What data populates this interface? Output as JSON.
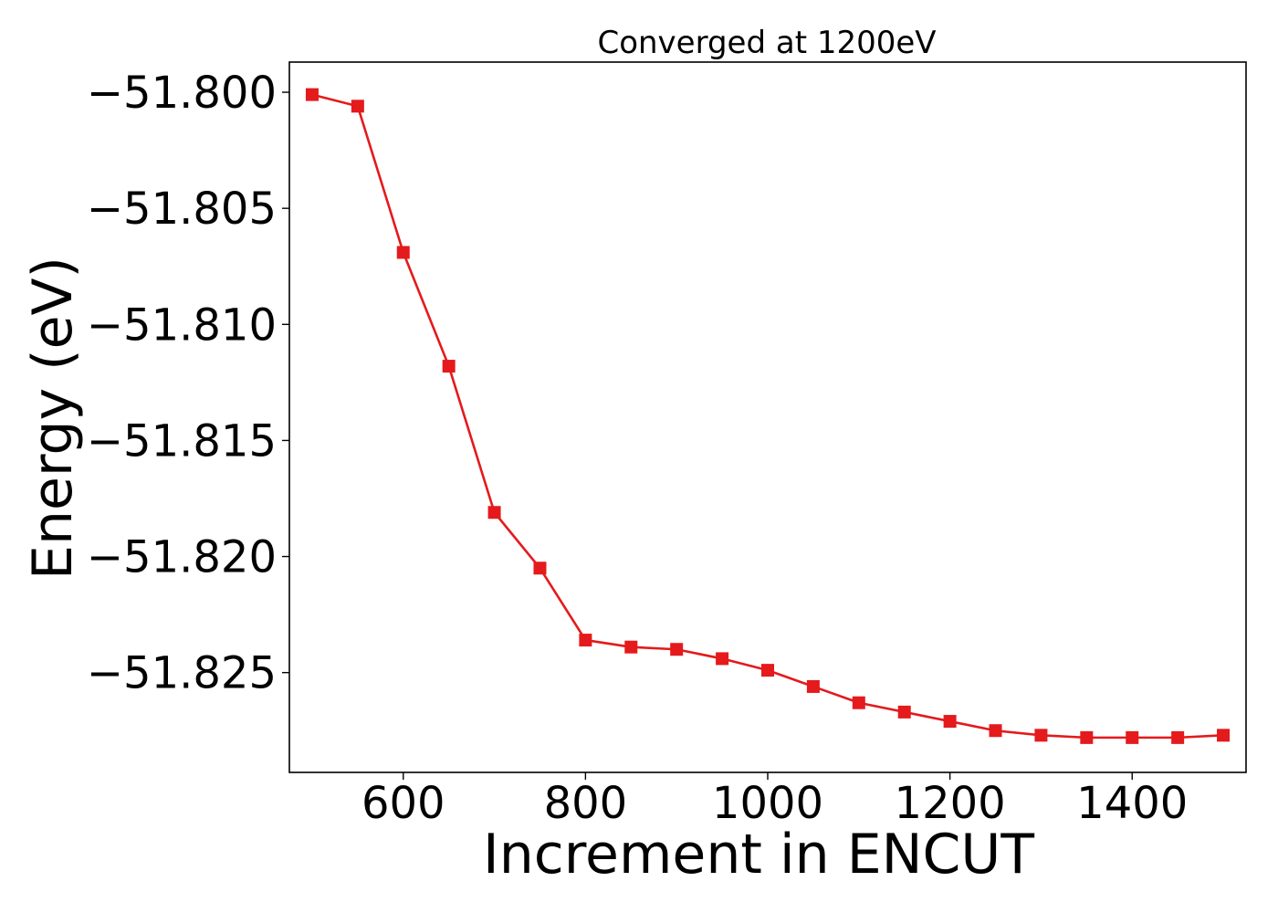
{
  "chart_data": {
    "type": "line",
    "title": "Converged at 1200eV",
    "xlabel": "Increment in ENCUT",
    "ylabel": "Energy (eV)",
    "xlim": [
      475,
      1525
    ],
    "ylim": [
      -51.8293,
      -51.7987
    ],
    "x_ticks": [
      600,
      800,
      1000,
      1200,
      1400
    ],
    "x_tick_labels": [
      "600",
      "800",
      "1000",
      "1200",
      "1400"
    ],
    "y_ticks": [
      -51.8,
      -51.805,
      -51.81,
      -51.815,
      -51.82,
      -51.825
    ],
    "y_tick_labels": [
      "−51.800",
      "−51.805",
      "−51.810",
      "−51.815",
      "−51.820",
      "−51.825"
    ],
    "grid": false,
    "legend": "none",
    "marker": "square",
    "series": [
      {
        "color": "#e41a1c",
        "x": [
          500,
          550,
          600,
          650,
          700,
          750,
          800,
          850,
          900,
          950,
          1000,
          1050,
          1100,
          1150,
          1200,
          1250,
          1300,
          1350,
          1400,
          1450,
          1500
        ],
        "y": [
          -51.8001,
          -51.8006,
          -51.8069,
          -51.8118,
          -51.8181,
          -51.8205,
          -51.8236,
          -51.8239,
          -51.824,
          -51.8244,
          -51.8249,
          -51.8256,
          -51.8263,
          -51.8267,
          -51.8271,
          -51.8275,
          -51.8277,
          -51.8278,
          -51.8278,
          -51.8278,
          -51.8277
        ]
      }
    ]
  }
}
